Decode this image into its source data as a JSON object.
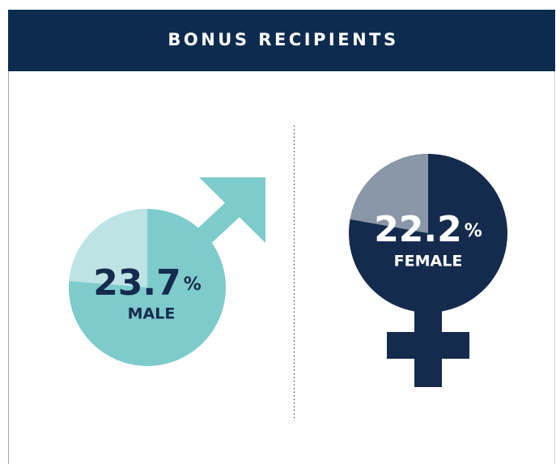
{
  "title": "BONUS RECIPIENTS",
  "chart_data": [
    {
      "type": "pie",
      "label": "MALE",
      "value": 23.7,
      "unit": "%",
      "color": "#bde3e5",
      "base_color": "#7ecbcc",
      "text_color": "#152b4d"
    },
    {
      "type": "pie",
      "label": "FEMALE",
      "value": 22.2,
      "unit": "%",
      "color": "#8a97a8",
      "base_color": "#152b4d",
      "text_color": "#ffffff"
    }
  ]
}
